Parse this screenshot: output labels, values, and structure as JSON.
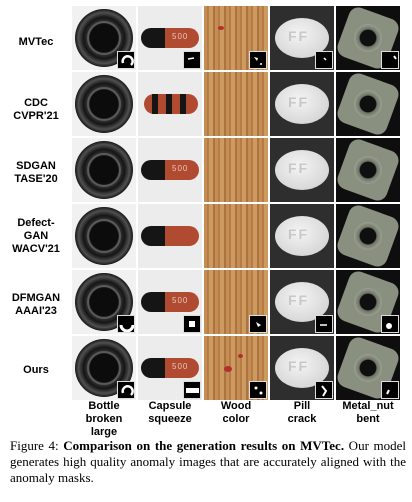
{
  "rows": [
    {
      "label": "MVTec"
    },
    {
      "label": "CDC CVPR'21"
    },
    {
      "label": "SDGAN TASE'20"
    },
    {
      "label": "Defect-GAN WACV'21"
    },
    {
      "label": "DFMGAN AAAI'23"
    },
    {
      "label": "Ours"
    }
  ],
  "row_labels": {
    "r0": "MVTec",
    "r1a": "CDC",
    "r1b": "CVPR'21",
    "r2a": "SDGAN",
    "r2b": "TASE'20",
    "r3a": "Defect-",
    "r3b": "GAN",
    "r3c": "WACV'21",
    "r4a": "DFMGAN",
    "r4b": "AAAI'23",
    "r5": "Ours"
  },
  "columns": {
    "c0a": "Bottle",
    "c0b": "broken large",
    "c1a": "Capsule",
    "c1b": "squeeze",
    "c2a": "Wood",
    "c2b": "color",
    "c3a": "Pill",
    "c3b": "crack",
    "c4a": "Metal_nut",
    "c4b": "bent"
  },
  "capsule_print": "500",
  "pill_print": "FF",
  "caption": {
    "prefix": "Figure 4: ",
    "bold": "Comparison on the generation results on MVTec.",
    "rest": " Our model generates high quality anomaly images that are accurately aligned with the anomaly masks."
  },
  "colors": {
    "wood": "#c38d55",
    "capsule_red": "#b04a30",
    "capsule_black": "#151515",
    "mask_fill": "#000000",
    "mask_mark": "#ffffff"
  }
}
